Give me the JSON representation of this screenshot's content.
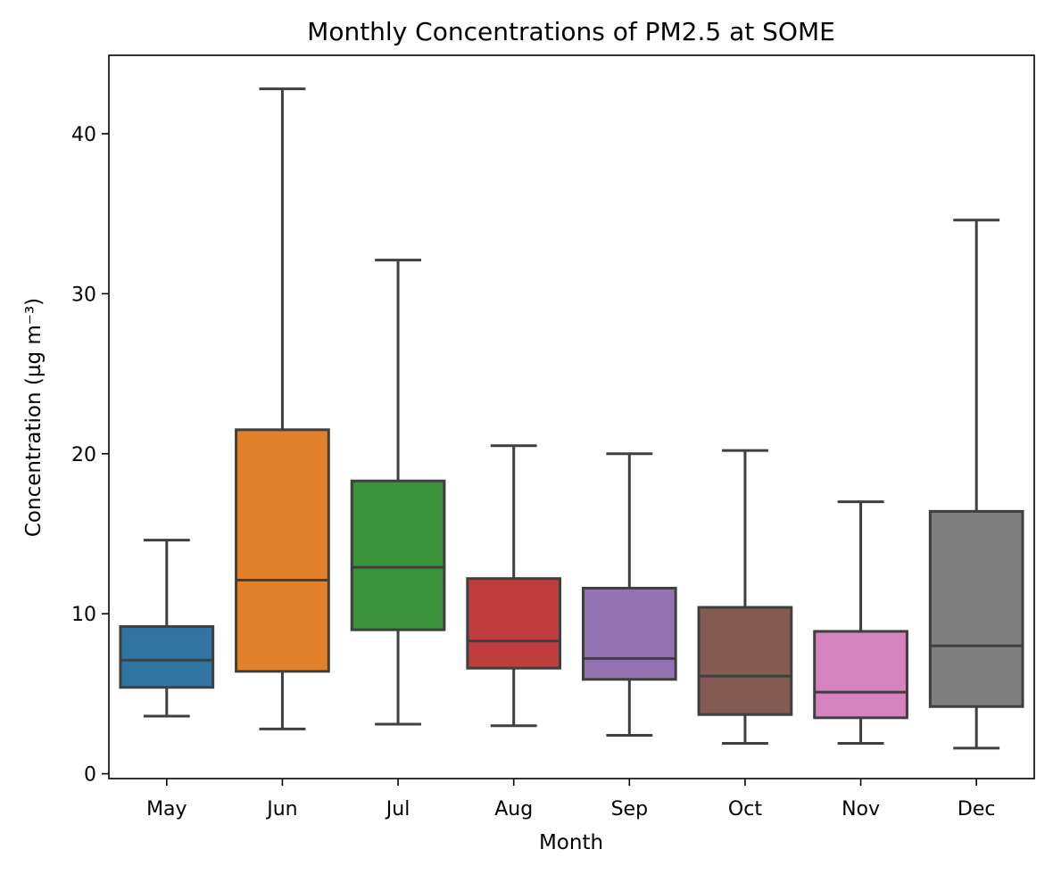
{
  "chart_data": {
    "type": "box",
    "title": "Monthly Concentrations of PM2.5 at SOME",
    "xlabel": "Month",
    "ylabel": "Concentration (µg m⁻³)",
    "ylim": [
      -0.3,
      44.9
    ],
    "yticks": [
      0,
      10,
      20,
      30,
      40
    ],
    "grid": false,
    "categories": [
      "May",
      "Jun",
      "Jul",
      "Aug",
      "Sep",
      "Oct",
      "Nov",
      "Dec"
    ],
    "boxes": [
      {
        "category": "May",
        "whisker_low": 3.6,
        "q1": 5.4,
        "median": 7.1,
        "q3": 9.2,
        "whisker_high": 14.6,
        "color": "#3274a1"
      },
      {
        "category": "Jun",
        "whisker_low": 2.8,
        "q1": 6.4,
        "median": 12.1,
        "q3": 21.5,
        "whisker_high": 42.8,
        "color": "#e1812c"
      },
      {
        "category": "Jul",
        "whisker_low": 3.1,
        "q1": 9.0,
        "median": 12.9,
        "q3": 18.3,
        "whisker_high": 32.1,
        "color": "#3a923a"
      },
      {
        "category": "Aug",
        "whisker_low": 3.0,
        "q1": 6.6,
        "median": 8.3,
        "q3": 12.2,
        "whisker_high": 20.5,
        "color": "#c03d3e"
      },
      {
        "category": "Sep",
        "whisker_low": 2.4,
        "q1": 5.9,
        "median": 7.2,
        "q3": 11.6,
        "whisker_high": 20.0,
        "color": "#9372b2"
      },
      {
        "category": "Oct",
        "whisker_low": 1.9,
        "q1": 3.7,
        "median": 6.1,
        "q3": 10.4,
        "whisker_high": 20.2,
        "color": "#845b53"
      },
      {
        "category": "Nov",
        "whisker_low": 1.9,
        "q1": 3.5,
        "median": 5.1,
        "q3": 8.9,
        "whisker_high": 17.0,
        "color": "#d684bd"
      },
      {
        "category": "Dec",
        "whisker_low": 1.6,
        "q1": 4.2,
        "median": 8.0,
        "q3": 16.4,
        "whisker_high": 34.6,
        "color": "#7f7f7f"
      }
    ]
  }
}
